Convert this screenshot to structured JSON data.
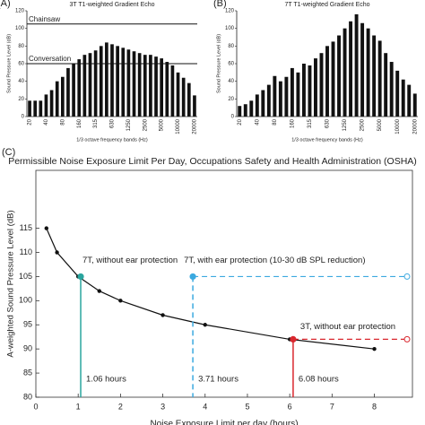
{
  "chart_data": [
    {
      "type": "bar",
      "panel": "(A)",
      "title": "3T T1-weighted Gradient Echo",
      "x_label": "1/3 octave frequency bands (Hz)",
      "y_label": "Sound Pressure Level (dB)",
      "categories": [
        "20",
        null,
        null,
        "40",
        null,
        null,
        "80",
        null,
        null,
        "160",
        null,
        null,
        "315",
        null,
        null,
        "630",
        null,
        null,
        "1250",
        null,
        null,
        "2500",
        null,
        null,
        "5000",
        null,
        null,
        "10000",
        null,
        null,
        "20000"
      ],
      "values": [
        18,
        18,
        18,
        25,
        30,
        40,
        45,
        55,
        60,
        65,
        70,
        72,
        75,
        80,
        84,
        82,
        80,
        78,
        76,
        74,
        72,
        70,
        70,
        68,
        66,
        62,
        58,
        50,
        44,
        38,
        24
      ],
      "color": "#111111",
      "ylim": [
        0,
        120
      ],
      "yticks": [
        0,
        20,
        40,
        60,
        80,
        100,
        120
      ],
      "reference_lines": [
        {
          "label": "Chainsaw",
          "value": 105
        },
        {
          "label": "Conversation",
          "value": 60
        }
      ]
    },
    {
      "type": "bar",
      "panel": "(B)",
      "title": "7T T1-weighted Gradient Echo",
      "x_label": "1/3 octave frequency bands (Hz)",
      "y_label": "Sound Pressure Level (dB)",
      "categories": [
        "20",
        null,
        null,
        "40",
        null,
        null,
        "80",
        null,
        null,
        "160",
        null,
        null,
        "315",
        null,
        null,
        "630",
        null,
        null,
        "1250",
        null,
        null,
        "2500",
        null,
        null,
        "5000",
        null,
        null,
        "10000",
        null,
        null,
        "20000"
      ],
      "values": [
        12,
        14,
        18,
        25,
        30,
        36,
        46,
        40,
        45,
        55,
        50,
        60,
        58,
        66,
        72,
        80,
        85,
        92,
        100,
        108,
        116,
        106,
        100,
        92,
        86,
        72,
        62,
        52,
        42,
        36,
        26
      ],
      "color": "#111111",
      "ylim": [
        0,
        120
      ],
      "yticks": [
        0,
        20,
        40,
        60,
        80,
        100,
        120
      ]
    },
    {
      "type": "line",
      "panel": "(C)",
      "title": "Permissible Noise Exposure Limit Per Day, Occupations Safety and Health Administration (OSHA)",
      "x_label": "Noise Exposure Limit per day (hours)",
      "y_label": "A-weighted Sound Pressure Level (dB)",
      "x": [
        0.25,
        0.5,
        1,
        1.5,
        2,
        3,
        4,
        6,
        8
      ],
      "series": [
        {
          "color": "#111111",
          "values": [
            115,
            110,
            105,
            102,
            100,
            97,
            95,
            92,
            90
          ]
        }
      ],
      "xlim": [
        0,
        8.9
      ],
      "xticks": [
        0,
        1,
        2,
        3,
        4,
        5,
        6,
        7,
        8
      ],
      "ylim": [
        80,
        127
      ],
      "yticks": [
        80,
        85,
        90,
        95,
        100,
        105,
        110,
        115
      ],
      "markers": [
        {
          "label": "7T, without ear protection",
          "x": 1.06,
          "y": 105,
          "x_label": "1.06 hours",
          "color": "#2aa59e",
          "dash_vertical": false,
          "extend_right": false
        },
        {
          "label": "7T, with ear protection (10-30 dB SPL reduction)",
          "x": 3.71,
          "y": 105,
          "x_label": "3.71 hours",
          "color": "#3ba9e0",
          "dash_vertical": true,
          "extend_right": true
        },
        {
          "label": "3T, without ear protection",
          "x": 6.08,
          "y": 92,
          "x_label": "6.08 hours",
          "color": "#d9272e",
          "dash_vertical": false,
          "extend_right": true
        }
      ]
    }
  ]
}
